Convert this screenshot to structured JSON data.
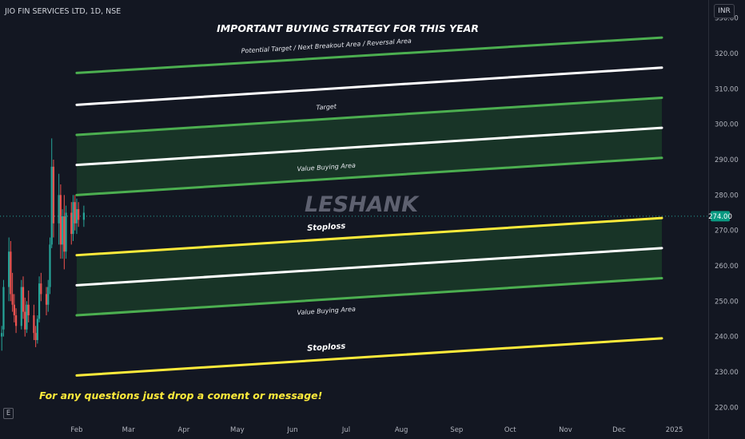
{
  "header": {
    "symbol": "JIO FIN SERVICES LTD, 1D, NSE",
    "currency": "INR"
  },
  "footer": {
    "log_badge": "E"
  },
  "chart_data": {
    "type": "candlestick",
    "title": "IMPORTANT BUYING STRATEGY FOR THIS YEAR",
    "watermark": "LESHANK",
    "footer_note": "For any questions just drop a coment or message!",
    "ylim": [
      216,
      334
    ],
    "y_ticks": [
      220,
      230,
      240,
      250,
      260,
      270,
      280,
      290,
      300,
      310,
      320,
      330
    ],
    "y_tick_labels": [
      "220.00",
      "230.00",
      "240.00",
      "250.00",
      "260.00",
      "270.00",
      "280.00",
      "290.00",
      "300.00",
      "310.00",
      "320.00",
      "330.00"
    ],
    "x_labels": [
      "Feb",
      "Mar",
      "Apr",
      "May",
      "Jun",
      "Jul",
      "Aug",
      "Sep",
      "Oct",
      "Nov",
      "Dec",
      "2025"
    ],
    "x_range": [
      "2023-12-20",
      "2025-01-20"
    ],
    "x_ticks": [
      "2024-02-01",
      "2024-03-01",
      "2024-04-01",
      "2024-05-01",
      "2024-06-01",
      "2024-07-01",
      "2024-08-01",
      "2024-09-01",
      "2024-10-01",
      "2024-11-01",
      "2024-12-01",
      "2025-01-01"
    ],
    "current_price": 274.0,
    "current_price_label": "274.00",
    "colors": {
      "background": "#131722",
      "green_line": "#4caf50",
      "white_line": "#ffffff",
      "yellow_line": "#ffeb3b",
      "zone_fill": "#1e4d2b",
      "up_candle": "#26a69a",
      "down_candle": "#ef5350",
      "title_text": "#ffffff",
      "note_text": "#ffeb3b"
    },
    "trend_lines": [
      {
        "name": "upper-green-line",
        "color": "green",
        "start": [
          "2024-02-01",
          314.5
        ],
        "end": [
          "2024-12-25",
          324.5
        ]
      },
      {
        "name": "upper-white-line",
        "color": "white",
        "start": [
          "2024-02-01",
          305.5
        ],
        "end": [
          "2024-12-25",
          316.0
        ]
      },
      {
        "name": "target-green-line",
        "color": "green",
        "start": [
          "2024-02-01",
          297.0
        ],
        "end": [
          "2024-12-25",
          307.5
        ]
      },
      {
        "name": "middle-white-line",
        "color": "white",
        "start": [
          "2024-02-01",
          288.5
        ],
        "end": [
          "2024-12-25",
          299.0
        ]
      },
      {
        "name": "value-area-green-line",
        "color": "green",
        "start": [
          "2024-02-01",
          280.0
        ],
        "end": [
          "2024-12-25",
          290.5
        ]
      },
      {
        "name": "stoploss-yellow-line",
        "color": "yellow",
        "start": [
          "2024-02-01",
          263.0
        ],
        "end": [
          "2024-12-25",
          273.5
        ]
      },
      {
        "name": "lower-white-line",
        "color": "white",
        "start": [
          "2024-02-01",
          254.5
        ],
        "end": [
          "2024-12-25",
          265.0
        ]
      },
      {
        "name": "lower-green-line",
        "color": "green",
        "start": [
          "2024-02-01",
          246.0
        ],
        "end": [
          "2024-12-25",
          256.5
        ]
      },
      {
        "name": "lower-stoploss-yellow-line",
        "color": "yellow",
        "start": [
          "2024-02-01",
          229.0
        ],
        "end": [
          "2024-12-25",
          239.5
        ]
      }
    ],
    "zones": [
      {
        "name": "upper-value-zone",
        "top": "target-green-line",
        "bottom": "value-area-green-line"
      },
      {
        "name": "lower-value-zone",
        "top": "stoploss-yellow-line",
        "bottom": "lower-green-line"
      }
    ],
    "annotations": [
      {
        "name": "potential-target-label",
        "text": "Potential Target / Next Breakout Area / Reversal Area",
        "on": "upper-green-line",
        "at": "2024-06-20",
        "offset": 2.8,
        "bold": false
      },
      {
        "name": "target-label",
        "text": "Target",
        "on": "target-green-line",
        "at": "2024-06-20",
        "offset": 2.8,
        "bold": false
      },
      {
        "name": "value-buying-area-label-1",
        "text": "Value Buying Area",
        "on": "value-area-green-line",
        "at": "2024-06-20",
        "offset": 2.8,
        "bold": false
      },
      {
        "name": "stoploss-label-1",
        "text": "Stoploss",
        "on": "stoploss-yellow-line",
        "at": "2024-06-20",
        "offset": 2.8,
        "bold": true
      },
      {
        "name": "value-buying-area-label-2",
        "text": "Value Buying Area",
        "on": "lower-green-line",
        "at": "2024-06-20",
        "offset": -3.8,
        "bold": false
      },
      {
        "name": "stoploss-label-2",
        "text": "Stoploss",
        "on": "lower-stoploss-yellow-line",
        "at": "2024-06-20",
        "offset": 2.8,
        "bold": true
      }
    ],
    "candles": [
      {
        "date": "2023-12-21",
        "o": 240,
        "h": 243,
        "l": 236,
        "c": 241
      },
      {
        "date": "2023-12-22",
        "o": 242,
        "h": 256,
        "l": 240,
        "c": 254
      },
      {
        "date": "2023-12-25",
        "o": 254,
        "h": 268,
        "l": 250,
        "c": 264
      },
      {
        "date": "2023-12-26",
        "o": 264,
        "h": 267,
        "l": 250,
        "c": 252
      },
      {
        "date": "2023-12-27",
        "o": 252,
        "h": 258,
        "l": 247,
        "c": 249
      },
      {
        "date": "2023-12-28",
        "o": 249,
        "h": 252,
        "l": 244,
        "c": 246
      },
      {
        "date": "2023-12-29",
        "o": 246,
        "h": 248,
        "l": 241,
        "c": 243
      },
      {
        "date": "2024-01-01",
        "o": 243,
        "h": 256,
        "l": 242,
        "c": 254
      },
      {
        "date": "2024-01-02",
        "o": 254,
        "h": 257,
        "l": 245,
        "c": 247
      },
      {
        "date": "2024-01-03",
        "o": 247,
        "h": 251,
        "l": 240,
        "c": 242
      },
      {
        "date": "2024-01-04",
        "o": 242,
        "h": 250,
        "l": 241,
        "c": 249
      },
      {
        "date": "2024-01-05",
        "o": 249,
        "h": 253,
        "l": 244,
        "c": 246
      },
      {
        "date": "2024-01-08",
        "o": 246,
        "h": 249,
        "l": 239,
        "c": 241
      },
      {
        "date": "2024-01-09",
        "o": 241,
        "h": 243,
        "l": 237,
        "c": 239
      },
      {
        "date": "2024-01-10",
        "o": 239,
        "h": 246,
        "l": 238,
        "c": 245
      },
      {
        "date": "2024-01-11",
        "o": 245,
        "h": 257,
        "l": 244,
        "c": 255
      },
      {
        "date": "2024-01-12",
        "o": 255,
        "h": 258,
        "l": 250,
        "c": 252
      },
      {
        "date": "2024-01-15",
        "o": 252,
        "h": 254,
        "l": 246,
        "c": 249
      },
      {
        "date": "2024-01-16",
        "o": 249,
        "h": 256,
        "l": 247,
        "c": 254
      },
      {
        "date": "2024-01-17",
        "o": 254,
        "h": 268,
        "l": 252,
        "c": 266
      },
      {
        "date": "2024-01-18",
        "o": 266,
        "h": 296,
        "l": 265,
        "c": 288
      },
      {
        "date": "2024-01-19",
        "o": 288,
        "h": 290,
        "l": 268,
        "c": 272
      },
      {
        "date": "2024-01-22",
        "o": 272,
        "h": 286,
        "l": 266,
        "c": 280
      },
      {
        "date": "2024-01-23",
        "o": 280,
        "h": 283,
        "l": 262,
        "c": 266
      },
      {
        "date": "2024-01-24",
        "o": 266,
        "h": 276,
        "l": 262,
        "c": 274
      },
      {
        "date": "2024-01-25",
        "o": 274,
        "h": 280,
        "l": 259,
        "c": 264
      },
      {
        "date": "2024-01-26",
        "o": 264,
        "h": 277,
        "l": 262,
        "c": 275
      },
      {
        "date": "2024-01-29",
        "o": 275,
        "h": 278,
        "l": 266,
        "c": 269
      },
      {
        "date": "2024-01-30",
        "o": 269,
        "h": 280,
        "l": 267,
        "c": 278
      },
      {
        "date": "2024-01-31",
        "o": 278,
        "h": 280,
        "l": 270,
        "c": 272
      },
      {
        "date": "2024-02-01",
        "o": 272,
        "h": 279,
        "l": 269,
        "c": 276
      },
      {
        "date": "2024-02-02",
        "o": 276,
        "h": 278,
        "l": 271,
        "c": 273
      },
      {
        "date": "2024-02-05",
        "o": 273,
        "h": 277,
        "l": 271,
        "c": 275
      }
    ]
  }
}
